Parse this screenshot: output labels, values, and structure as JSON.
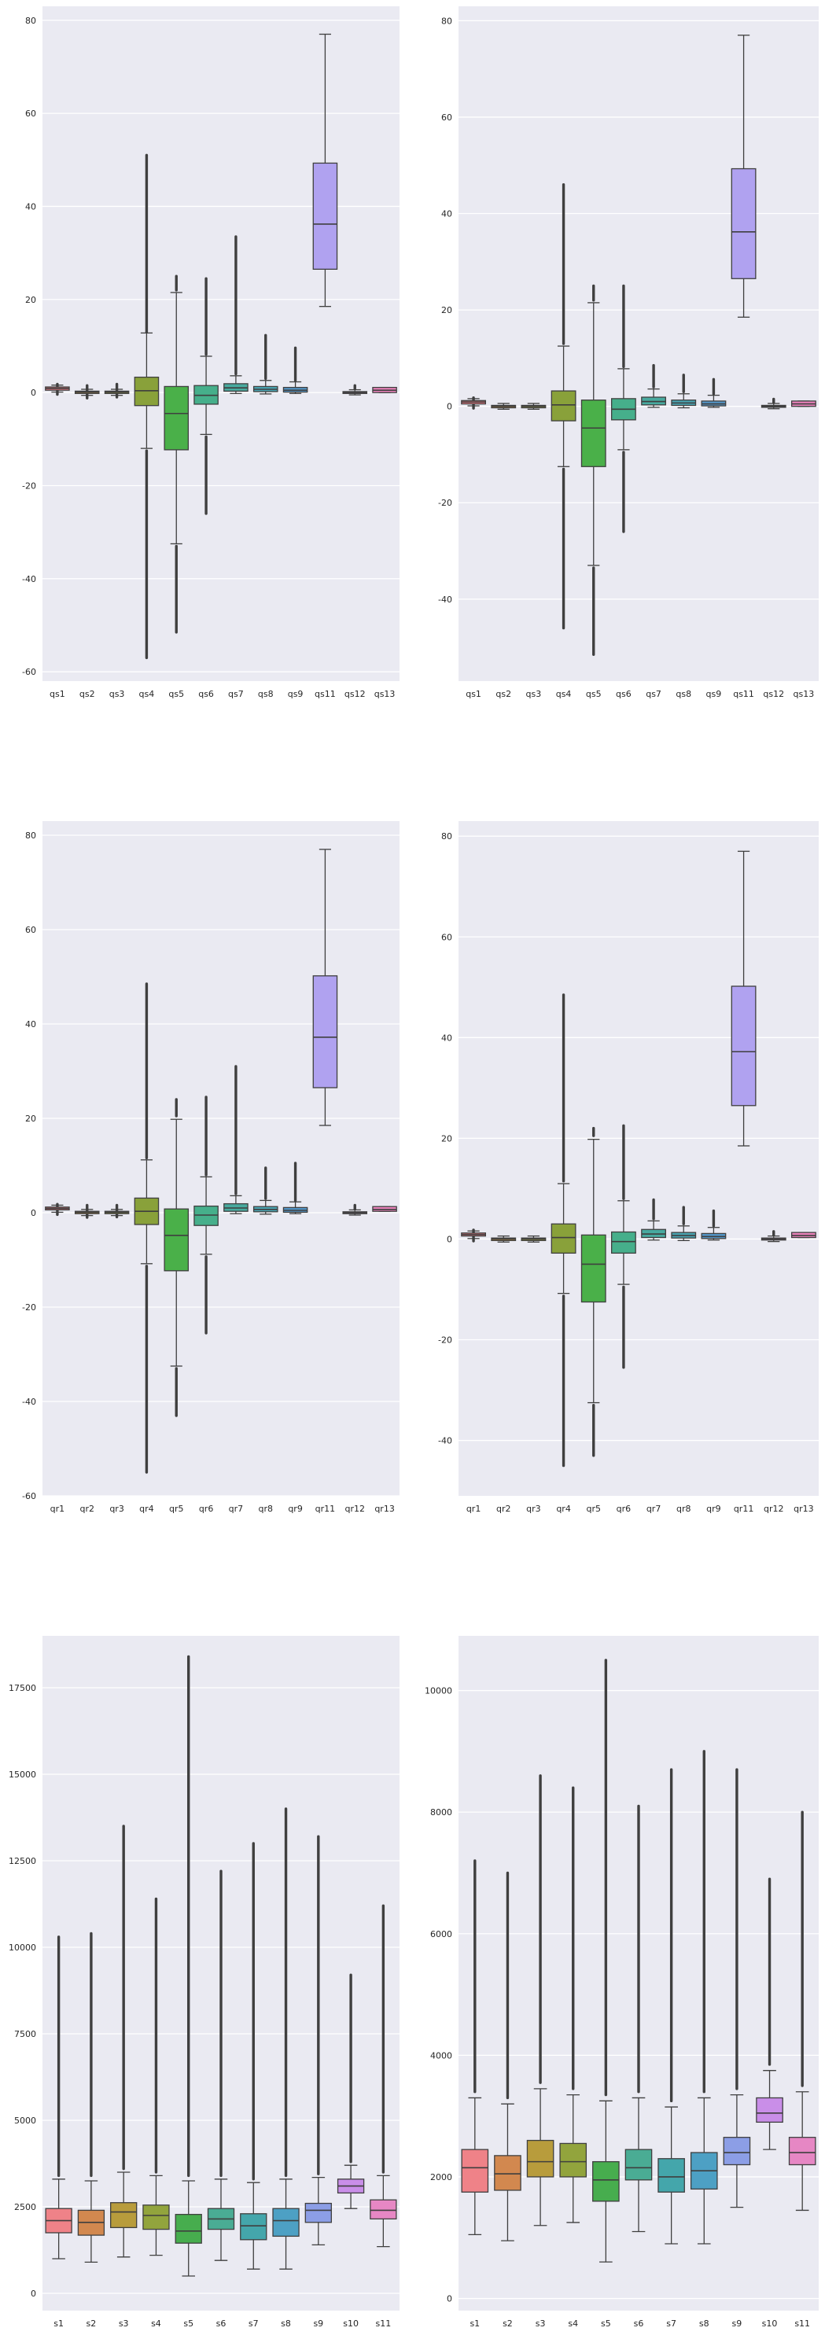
{
  "chart_data": [
    {
      "type": "box",
      "ylim": [
        -62,
        83
      ],
      "yticks": [
        -60,
        -40,
        -20,
        0,
        20,
        40,
        60,
        80
      ],
      "grid": true,
      "categories": [
        "qs1",
        "qs2",
        "qs3",
        "qs4",
        "qs5",
        "qs6",
        "qs7",
        "qs8",
        "qs9",
        "qs11",
        "qs12",
        "qs13"
      ],
      "boxes": [
        {
          "q1": 0.5,
          "med": 0.9,
          "q3": 1.2,
          "wlo": 0.1,
          "whi": 1.6,
          "fliers": [
            [
              -0.4,
              1.8
            ]
          ]
        },
        {
          "q1": -0.2,
          "med": 0.1,
          "q3": 0.3,
          "wlo": -0.6,
          "whi": 0.7,
          "fliers": [
            [
              -1.2,
              1.5
            ]
          ]
        },
        {
          "q1": -0.2,
          "med": 0.1,
          "q3": 0.3,
          "wlo": -0.6,
          "whi": 0.7,
          "fliers": [
            [
              -1.0,
              1.8
            ]
          ]
        },
        {
          "q1": -2.8,
          "med": 0.4,
          "q3": 3.3,
          "wlo": -12.0,
          "whi": 12.8,
          "fliers": [
            [
              -57,
              -12.5
            ],
            [
              13,
              51
            ]
          ]
        },
        {
          "q1": -12.3,
          "med": -4.5,
          "q3": 1.3,
          "wlo": -32.5,
          "whi": 21.5,
          "fliers": [
            [
              -51.5,
              -33
            ],
            [
              22,
              25
            ]
          ]
        },
        {
          "q1": -2.5,
          "med": -0.6,
          "q3": 1.5,
          "wlo": -9.0,
          "whi": 7.8,
          "fliers": [
            [
              -26,
              -9.5
            ],
            [
              8.2,
              24.5
            ]
          ]
        },
        {
          "q1": 0.3,
          "med": 1.0,
          "q3": 1.9,
          "wlo": -0.2,
          "whi": 3.6,
          "fliers": [
            [
              4.0,
              33.5
            ]
          ]
        },
        {
          "q1": 0.2,
          "med": 0.7,
          "q3": 1.3,
          "wlo": -0.3,
          "whi": 2.6,
          "fliers": [
            [
              3.0,
              12.3
            ]
          ]
        },
        {
          "q1": 0.1,
          "med": 0.5,
          "q3": 1.1,
          "wlo": -0.2,
          "whi": 2.3,
          "fliers": [
            [
              2.6,
              9.6
            ]
          ]
        },
        {
          "q1": 26.5,
          "med": 36.2,
          "q3": 49.3,
          "wlo": 18.5,
          "whi": 77,
          "fliers": []
        },
        {
          "q1": -0.2,
          "med": 0.0,
          "q3": 0.2,
          "wlo": -0.5,
          "whi": 0.6,
          "fliers": [
            [
              0.8,
              1.5
            ]
          ]
        },
        {
          "q1": 0.0,
          "med": 0.5,
          "q3": 1.1,
          "wlo": 0.0,
          "whi": 1.1,
          "fliers": []
        }
      ]
    },
    {
      "type": "box",
      "ylim": [
        -57,
        83
      ],
      "yticks": [
        -40,
        -20,
        0,
        20,
        40,
        60,
        80
      ],
      "grid": true,
      "categories": [
        "qs1",
        "qs2",
        "qs3",
        "qs4",
        "qs5",
        "qs6",
        "qs7",
        "qs8",
        "qs9",
        "qs11",
        "qs12",
        "qs13"
      ],
      "boxes": [
        {
          "q1": 0.5,
          "med": 0.9,
          "q3": 1.2,
          "wlo": 0.1,
          "whi": 1.6,
          "fliers": [
            [
              -0.4,
              1.8
            ]
          ]
        },
        {
          "q1": -0.3,
          "med": 0.0,
          "q3": 0.2,
          "wlo": -0.6,
          "whi": 0.6,
          "fliers": []
        },
        {
          "q1": -0.3,
          "med": 0.0,
          "q3": 0.2,
          "wlo": -0.6,
          "whi": 0.6,
          "fliers": []
        },
        {
          "q1": -3.0,
          "med": 0.3,
          "q3": 3.2,
          "wlo": -12.5,
          "whi": 12.5,
          "fliers": [
            [
              -46,
              -13
            ],
            [
              13,
              46
            ]
          ]
        },
        {
          "q1": -12.5,
          "med": -4.5,
          "q3": 1.3,
          "wlo": -33,
          "whi": 21.5,
          "fliers": [
            [
              -51.5,
              -33.5
            ],
            [
              22,
              25
            ]
          ]
        },
        {
          "q1": -2.8,
          "med": -0.6,
          "q3": 1.6,
          "wlo": -9.0,
          "whi": 7.8,
          "fliers": [
            [
              -26,
              -9.5
            ],
            [
              8.2,
              25
            ]
          ]
        },
        {
          "q1": 0.3,
          "med": 1.0,
          "q3": 1.9,
          "wlo": -0.2,
          "whi": 3.6,
          "fliers": [
            [
              4.0,
              8.5
            ]
          ]
        },
        {
          "q1": 0.2,
          "med": 0.7,
          "q3": 1.3,
          "wlo": -0.3,
          "whi": 2.6,
          "fliers": [
            [
              3.0,
              6.5
            ]
          ]
        },
        {
          "q1": 0.1,
          "med": 0.5,
          "q3": 1.1,
          "wlo": -0.2,
          "whi": 2.3,
          "fliers": [
            [
              2.6,
              5.6
            ]
          ]
        },
        {
          "q1": 26.5,
          "med": 36.2,
          "q3": 49.3,
          "wlo": 18.5,
          "whi": 77,
          "fliers": []
        },
        {
          "q1": -0.2,
          "med": 0.0,
          "q3": 0.2,
          "wlo": -0.5,
          "whi": 0.6,
          "fliers": [
            [
              0.8,
              1.5
            ]
          ]
        },
        {
          "q1": 0.0,
          "med": 0.5,
          "q3": 1.1,
          "wlo": 0.0,
          "whi": 1.1,
          "fliers": []
        }
      ]
    },
    {
      "type": "box",
      "ylim": [
        -60,
        83
      ],
      "yticks": [
        -60,
        -40,
        -20,
        0,
        20,
        40,
        60,
        80
      ],
      "grid": true,
      "categories": [
        "qr1",
        "qr2",
        "qr3",
        "qr4",
        "qr5",
        "qr6",
        "qr7",
        "qr8",
        "qr9",
        "qr11",
        "qr12",
        "qr13"
      ],
      "boxes": [
        {
          "q1": 0.6,
          "med": 0.9,
          "q3": 1.2,
          "wlo": 0.1,
          "whi": 1.6,
          "fliers": [
            [
              -0.4,
              1.8
            ]
          ]
        },
        {
          "q1": -0.2,
          "med": 0.1,
          "q3": 0.3,
          "wlo": -0.6,
          "whi": 0.7,
          "fliers": [
            [
              -1.0,
              1.6
            ]
          ]
        },
        {
          "q1": -0.2,
          "med": 0.1,
          "q3": 0.3,
          "wlo": -0.6,
          "whi": 0.7,
          "fliers": [
            [
              -0.9,
              1.6
            ]
          ]
        },
        {
          "q1": -2.5,
          "med": 0.3,
          "q3": 3.1,
          "wlo": -10.8,
          "whi": 11.2,
          "fliers": [
            [
              -55,
              -11.3
            ],
            [
              11.6,
              48.5
            ]
          ]
        },
        {
          "q1": -12.3,
          "med": -4.8,
          "q3": 0.8,
          "wlo": -32.5,
          "whi": 19.8,
          "fliers": [
            [
              -43,
              -33
            ],
            [
              20.5,
              24
            ]
          ]
        },
        {
          "q1": -2.7,
          "med": -0.5,
          "q3": 1.4,
          "wlo": -8.8,
          "whi": 7.6,
          "fliers": [
            [
              -25.5,
              -9.3
            ],
            [
              8.0,
              24.5
            ]
          ]
        },
        {
          "q1": 0.3,
          "med": 1.0,
          "q3": 1.9,
          "wlo": -0.2,
          "whi": 3.6,
          "fliers": [
            [
              4.0,
              31
            ]
          ]
        },
        {
          "q1": 0.2,
          "med": 0.7,
          "q3": 1.3,
          "wlo": -0.3,
          "whi": 2.6,
          "fliers": [
            [
              3.0,
              9.5
            ]
          ]
        },
        {
          "q1": 0.1,
          "med": 0.5,
          "q3": 1.1,
          "wlo": -0.2,
          "whi": 2.3,
          "fliers": [
            [
              2.6,
              10.5
            ]
          ]
        },
        {
          "q1": 26.5,
          "med": 37.2,
          "q3": 50.2,
          "wlo": 18.5,
          "whi": 77,
          "fliers": []
        },
        {
          "q1": -0.2,
          "med": 0.0,
          "q3": 0.2,
          "wlo": -0.5,
          "whi": 0.6,
          "fliers": [
            [
              0.8,
              1.6
            ]
          ]
        },
        {
          "q1": 0.3,
          "med": 0.7,
          "q3": 1.3,
          "wlo": 0.3,
          "whi": 1.3,
          "fliers": []
        }
      ]
    },
    {
      "type": "box",
      "ylim": [
        -51,
        83
      ],
      "yticks": [
        -40,
        -20,
        0,
        20,
        40,
        60,
        80
      ],
      "grid": true,
      "categories": [
        "qr1",
        "qr2",
        "qr3",
        "qr4",
        "qr5",
        "qr6",
        "qr7",
        "qr8",
        "qr9",
        "qr11",
        "qr12",
        "qr13"
      ],
      "boxes": [
        {
          "q1": 0.6,
          "med": 0.9,
          "q3": 1.2,
          "wlo": 0.1,
          "whi": 1.6,
          "fliers": [
            [
              -0.4,
              1.8
            ]
          ]
        },
        {
          "q1": -0.3,
          "med": 0.0,
          "q3": 0.2,
          "wlo": -0.6,
          "whi": 0.6,
          "fliers": []
        },
        {
          "q1": -0.3,
          "med": 0.0,
          "q3": 0.2,
          "wlo": -0.6,
          "whi": 0.6,
          "fliers": []
        },
        {
          "q1": -2.8,
          "med": 0.3,
          "q3": 3.0,
          "wlo": -10.8,
          "whi": 11.0,
          "fliers": [
            [
              -45,
              -11.3
            ],
            [
              11.5,
              48.5
            ]
          ]
        },
        {
          "q1": -12.5,
          "med": -5.0,
          "q3": 0.8,
          "wlo": -32.5,
          "whi": 19.8,
          "fliers": [
            [
              -43,
              -33
            ],
            [
              20.5,
              22
            ]
          ]
        },
        {
          "q1": -2.8,
          "med": -0.5,
          "q3": 1.4,
          "wlo": -9.0,
          "whi": 7.6,
          "fliers": [
            [
              -25.5,
              -9.5
            ],
            [
              8.0,
              22.5
            ]
          ]
        },
        {
          "q1": 0.3,
          "med": 1.0,
          "q3": 1.9,
          "wlo": -0.2,
          "whi": 3.6,
          "fliers": [
            [
              4.0,
              7.8
            ]
          ]
        },
        {
          "q1": 0.2,
          "med": 0.7,
          "q3": 1.3,
          "wlo": -0.3,
          "whi": 2.6,
          "fliers": [
            [
              3.0,
              6.3
            ]
          ]
        },
        {
          "q1": 0.1,
          "med": 0.5,
          "q3": 1.1,
          "wlo": -0.2,
          "whi": 2.3,
          "fliers": [
            [
              2.6,
              5.6
            ]
          ]
        },
        {
          "q1": 26.5,
          "med": 37.2,
          "q3": 50.2,
          "wlo": 18.5,
          "whi": 77,
          "fliers": []
        },
        {
          "q1": -0.2,
          "med": 0.0,
          "q3": 0.2,
          "wlo": -0.5,
          "whi": 0.6,
          "fliers": [
            [
              0.8,
              1.5
            ]
          ]
        },
        {
          "q1": 0.3,
          "med": 0.7,
          "q3": 1.3,
          "wlo": 0.3,
          "whi": 1.3,
          "fliers": []
        }
      ]
    },
    {
      "type": "box",
      "ylim": [
        -500,
        19000
      ],
      "yticks": [
        0,
        2500,
        5000,
        7500,
        10000,
        12500,
        15000,
        17500
      ],
      "grid": true,
      "categories": [
        "s1",
        "s2",
        "s3",
        "s4",
        "s5",
        "s6",
        "s7",
        "s8",
        "s9",
        "s10",
        "s11"
      ],
      "boxes": [
        {
          "q1": 1750,
          "med": 2100,
          "q3": 2450,
          "wlo": 1000,
          "whi": 3300,
          "fliers": [
            [
              3400,
              10300
            ]
          ]
        },
        {
          "q1": 1680,
          "med": 2050,
          "q3": 2400,
          "wlo": 900,
          "whi": 3250,
          "fliers": [
            [
              3400,
              10400
            ]
          ]
        },
        {
          "q1": 1900,
          "med": 2350,
          "q3": 2620,
          "wlo": 1050,
          "whi": 3500,
          "fliers": [
            [
              3600,
              13500
            ]
          ]
        },
        {
          "q1": 1850,
          "med": 2250,
          "q3": 2550,
          "wlo": 1100,
          "whi": 3400,
          "fliers": [
            [
              3500,
              11400
            ]
          ]
        },
        {
          "q1": 1450,
          "med": 1800,
          "q3": 2280,
          "wlo": 500,
          "whi": 3250,
          "fliers": [
            [
              3400,
              18400
            ]
          ]
        },
        {
          "q1": 1850,
          "med": 2150,
          "q3": 2450,
          "wlo": 950,
          "whi": 3300,
          "fliers": [
            [
              3400,
              12200
            ]
          ]
        },
        {
          "q1": 1550,
          "med": 1950,
          "q3": 2300,
          "wlo": 700,
          "whi": 3200,
          "fliers": [
            [
              3300,
              13000
            ]
          ]
        },
        {
          "q1": 1650,
          "med": 2100,
          "q3": 2450,
          "wlo": 700,
          "whi": 3300,
          "fliers": [
            [
              3400,
              14000
            ]
          ]
        },
        {
          "q1": 2050,
          "med": 2400,
          "q3": 2600,
          "wlo": 1400,
          "whi": 3350,
          "fliers": [
            [
              3450,
              13200
            ]
          ]
        },
        {
          "q1": 2900,
          "med": 3100,
          "q3": 3300,
          "wlo": 2450,
          "whi": 3700,
          "fliers": [
            [
              3800,
              9200
            ]
          ]
        },
        {
          "q1": 2150,
          "med": 2400,
          "q3": 2700,
          "wlo": 1350,
          "whi": 3400,
          "fliers": [
            [
              3500,
              11200
            ]
          ]
        }
      ]
    },
    {
      "type": "box",
      "ylim": [
        -200,
        10900
      ],
      "yticks": [
        0,
        2000,
        4000,
        6000,
        8000,
        10000
      ],
      "grid": true,
      "categories": [
        "s1",
        "s2",
        "s3",
        "s4",
        "s5",
        "s6",
        "s7",
        "s8",
        "s9",
        "s10",
        "s11"
      ],
      "boxes": [
        {
          "q1": 1750,
          "med": 2150,
          "q3": 2450,
          "wlo": 1050,
          "whi": 3300,
          "fliers": [
            [
              3400,
              7200
            ]
          ]
        },
        {
          "q1": 1780,
          "med": 2050,
          "q3": 2350,
          "wlo": 950,
          "whi": 3200,
          "fliers": [
            [
              3300,
              7000
            ]
          ]
        },
        {
          "q1": 2000,
          "med": 2250,
          "q3": 2600,
          "wlo": 1200,
          "whi": 3450,
          "fliers": [
            [
              3550,
              8600
            ]
          ]
        },
        {
          "q1": 2000,
          "med": 2250,
          "q3": 2550,
          "wlo": 1250,
          "whi": 3350,
          "fliers": [
            [
              3450,
              8400
            ]
          ]
        },
        {
          "q1": 1600,
          "med": 1950,
          "q3": 2250,
          "wlo": 600,
          "whi": 3250,
          "fliers": [
            [
              3350,
              10500
            ]
          ]
        },
        {
          "q1": 1950,
          "med": 2150,
          "q3": 2450,
          "wlo": 1100,
          "whi": 3300,
          "fliers": [
            [
              3400,
              8100
            ]
          ]
        },
        {
          "q1": 1750,
          "med": 2000,
          "q3": 2300,
          "wlo": 900,
          "whi": 3150,
          "fliers": [
            [
              3250,
              8700
            ]
          ]
        },
        {
          "q1": 1800,
          "med": 2100,
          "q3": 2400,
          "wlo": 900,
          "whi": 3300,
          "fliers": [
            [
              3400,
              9000
            ]
          ]
        },
        {
          "q1": 2200,
          "med": 2400,
          "q3": 2650,
          "wlo": 1500,
          "whi": 3350,
          "fliers": [
            [
              3450,
              8700
            ]
          ]
        },
        {
          "q1": 2900,
          "med": 3050,
          "q3": 3300,
          "wlo": 2450,
          "whi": 3750,
          "fliers": [
            [
              3850,
              6900
            ]
          ]
        },
        {
          "q1": 2200,
          "med": 2400,
          "q3": 2650,
          "wlo": 1450,
          "whi": 3400,
          "fliers": [
            [
              3500,
              8000
            ]
          ]
        }
      ]
    }
  ],
  "palettes": {
    "p12": [
      "#f07b85",
      "#c79240",
      "#a4a041",
      "#89a13a",
      "#4ab049",
      "#46af8b",
      "#48aa9f",
      "#4aa6b3",
      "#5497c9",
      "#b0a2f0",
      "#dd79e4",
      "#ed83bd"
    ],
    "p11": [
      "#ef8288",
      "#d2884f",
      "#b89c3c",
      "#92a43d",
      "#47ad4e",
      "#4aac94",
      "#44a6ab",
      "#4da0c4",
      "#8c9ee6",
      "#c98ee8",
      "#e687c4"
    ]
  }
}
